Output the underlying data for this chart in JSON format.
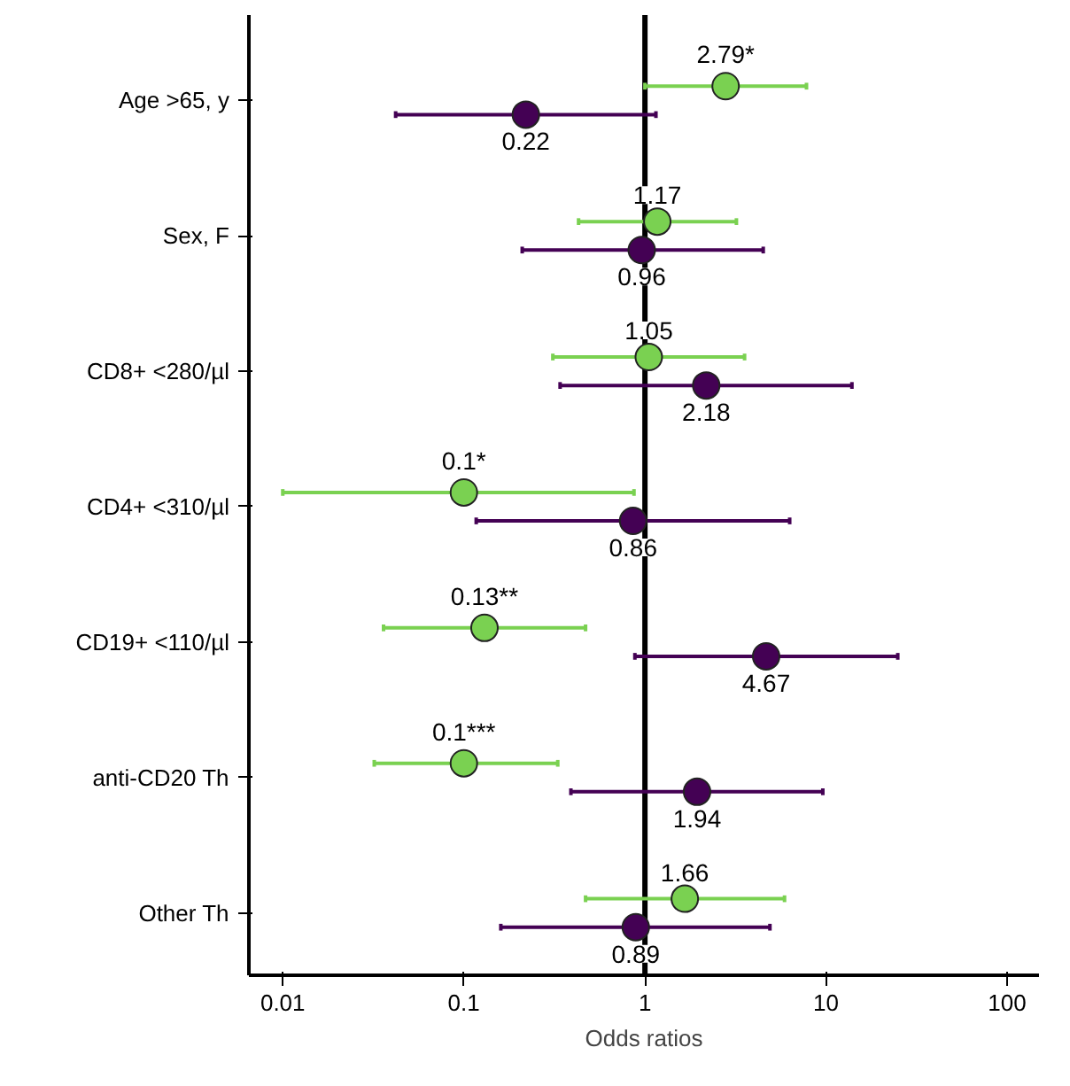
{
  "chart_data": {
    "type": "scatter",
    "orientation": "horizontal",
    "xlabel": "Odds ratios",
    "categories": [
      "Age >65, y",
      "Sex, F",
      "CD8+ <280/µl",
      "CD4+ <310/µl",
      "CD19+ <110/µl",
      "anti-CD20 Th",
      "Other Th"
    ],
    "series": [
      {
        "color": "#7ad151",
        "values": [
          2.79,
          1.17,
          1.05,
          0.1,
          0.13,
          0.1,
          1.66
        ],
        "errors": [
          [
            1.0,
            7.8
          ],
          [
            0.43,
            3.2
          ],
          [
            0.31,
            3.55
          ],
          [
            0.01,
            0.87
          ],
          [
            0.036,
            0.47
          ],
          [
            0.032,
            0.33
          ],
          [
            0.47,
            5.9
          ]
        ],
        "value_labels": [
          "2.79*",
          "1.17",
          "1.05",
          "0.1*",
          "0.13**",
          "0.1***",
          "1.66"
        ]
      },
      {
        "color": "#440154",
        "values": [
          0.22,
          0.96,
          2.18,
          0.86,
          4.67,
          1.94,
          0.89
        ],
        "errors": [
          [
            0.042,
            1.15
          ],
          [
            0.21,
            4.5
          ],
          [
            0.34,
            13.9
          ],
          [
            0.117,
            6.3
          ],
          [
            0.88,
            24.9
          ],
          [
            0.39,
            9.6
          ],
          [
            0.16,
            4.9
          ]
        ],
        "value_labels": [
          "0.22",
          "0.96",
          "2.18",
          "0.86",
          "4.67",
          "1.94",
          "0.89"
        ]
      }
    ],
    "log": "x",
    "xlim": [
      0.0065,
      150
    ],
    "xticks": [
      0.01,
      0.1,
      1,
      10,
      100
    ],
    "grid": false,
    "marker": "circle",
    "ref_lines": [
      {
        "axis": "x",
        "value": 1,
        "color": "#000000",
        "line_style": "solid"
      }
    ]
  }
}
